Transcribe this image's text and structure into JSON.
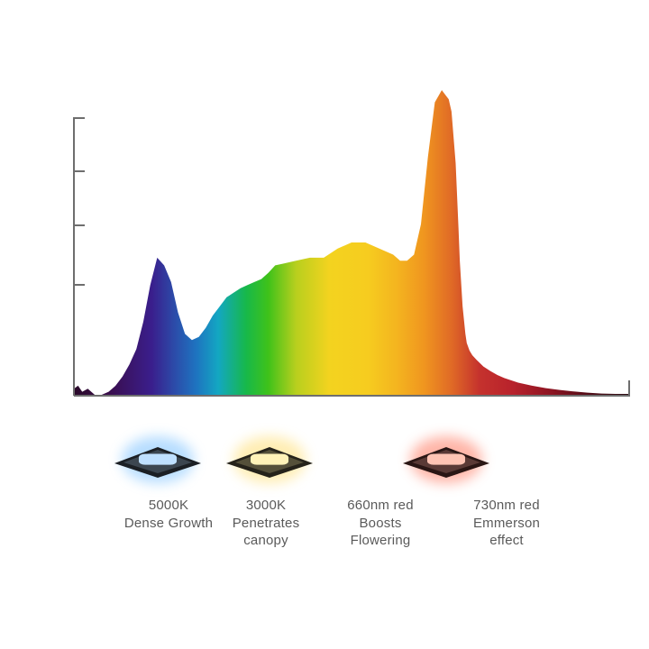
{
  "chart_data": {
    "type": "area",
    "title": "",
    "xlabel": "",
    "ylabel": "",
    "x_unit": "nm",
    "xlim": [
      380,
      780
    ],
    "ylim": [
      0,
      1
    ],
    "grid": false,
    "series": [
      {
        "x": [
          380,
          383,
          386,
          390,
          395,
          400,
          405,
          410,
          415,
          420,
          425,
          430,
          435,
          440,
          445,
          450,
          455,
          460,
          465,
          470,
          475,
          480,
          485,
          490,
          495,
          500,
          505,
          510,
          515,
          520,
          525,
          530,
          540,
          550,
          560,
          570,
          580,
          590,
          600,
          610,
          615,
          620,
          625,
          630,
          635,
          640,
          645,
          650,
          652,
          655,
          657,
          658,
          660,
          662,
          663,
          665,
          667,
          670,
          675,
          680,
          685,
          690,
          700,
          710,
          720,
          730,
          740,
          750,
          760,
          770,
          780
        ],
        "y": [
          0.02,
          0.03,
          0.01,
          0.02,
          0.0,
          0.0,
          0.01,
          0.03,
          0.06,
          0.1,
          0.15,
          0.24,
          0.36,
          0.45,
          0.425,
          0.37,
          0.27,
          0.2,
          0.18,
          0.19,
          0.22,
          0.26,
          0.29,
          0.32,
          0.335,
          0.35,
          0.36,
          0.37,
          0.38,
          0.4,
          0.425,
          0.43,
          0.44,
          0.45,
          0.45,
          0.48,
          0.5,
          0.5,
          0.48,
          0.46,
          0.44,
          0.44,
          0.46,
          0.56,
          0.78,
          0.96,
          1.0,
          0.97,
          0.93,
          0.76,
          0.55,
          0.44,
          0.29,
          0.2,
          0.17,
          0.145,
          0.13,
          0.115,
          0.093,
          0.078,
          0.065,
          0.055,
          0.04,
          0.03,
          0.022,
          0.016,
          0.011,
          0.007,
          0.004,
          0.003,
          0.003
        ]
      }
    ],
    "annotations": [
      {
        "line1": "5000K",
        "line2": "Dense Growth",
        "line3": "",
        "led_color": "#bfe0ff",
        "glow_color": "#9fd2ff"
      },
      {
        "line1": "3000K",
        "line2": "Penetrates",
        "line3": "canopy",
        "led_color": "#fff2b8",
        "glow_color": "#ffe79a"
      },
      {
        "line1": "660nm red",
        "line2": "Boosts",
        "line3": "Flowering",
        "led_color": "#ffc4b4",
        "glow_color": "#ff9c8a"
      },
      {
        "line1": "730nm red",
        "line2": "Emmerson",
        "line3": "effect",
        "led_color": "",
        "glow_color": ""
      }
    ]
  }
}
